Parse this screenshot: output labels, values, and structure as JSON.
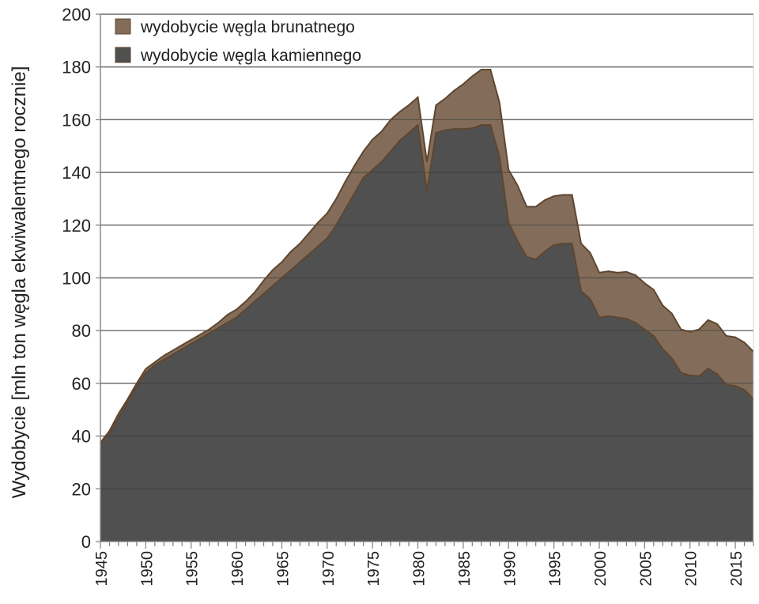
{
  "chart_data": {
    "type": "area",
    "stacked": true,
    "title": "",
    "xlabel": "",
    "ylabel": "Wydobycie [mln ton węgla ekwiwalentnego rocznie]",
    "xlim": [
      1945,
      2017
    ],
    "ylim": [
      0,
      200
    ],
    "y_ticks": [
      0,
      20,
      40,
      60,
      80,
      100,
      120,
      140,
      160,
      180,
      200
    ],
    "x_ticks": [
      1945,
      1950,
      1955,
      1960,
      1965,
      1970,
      1975,
      1980,
      1985,
      1990,
      1995,
      2000,
      2005,
      2010,
      2015
    ],
    "grid": "horizontal",
    "legend_position": "top-left",
    "x": [
      1945,
      1946,
      1947,
      1948,
      1949,
      1950,
      1951,
      1952,
      1953,
      1954,
      1955,
      1956,
      1957,
      1958,
      1959,
      1960,
      1961,
      1962,
      1963,
      1964,
      1965,
      1966,
      1967,
      1968,
      1969,
      1970,
      1971,
      1972,
      1973,
      1974,
      1975,
      1976,
      1977,
      1978,
      1979,
      1980,
      1981,
      1982,
      1983,
      1984,
      1985,
      1986,
      1987,
      1988,
      1989,
      1990,
      1991,
      1992,
      1993,
      1994,
      1995,
      1996,
      1997,
      1998,
      1999,
      2000,
      2001,
      2002,
      2003,
      2004,
      2005,
      2006,
      2007,
      2008,
      2009,
      2010,
      2011,
      2012,
      2013,
      2014,
      2015,
      2016,
      2017
    ],
    "series": [
      {
        "name": "wydobycie węgla kamiennego",
        "color": "#505050",
        "values": [
          37,
          41,
          47,
          53,
          59,
          64,
          67,
          69,
          71,
          73,
          75,
          77,
          79,
          81,
          83,
          85,
          88,
          91,
          94,
          97,
          100,
          103,
          106,
          109,
          112,
          115,
          120,
          126,
          132,
          138,
          141,
          144,
          148,
          152,
          155,
          158,
          133,
          155,
          156,
          156.5,
          156.5,
          156.7,
          158,
          158,
          146,
          121,
          114,
          108,
          107,
          110,
          112.5,
          113,
          113,
          95,
          92,
          85,
          85.5,
          85,
          84.5,
          83,
          80.5,
          78,
          73,
          69.5,
          64,
          63,
          62.7,
          65.6,
          63.5,
          59.5,
          59,
          57.5,
          54
        ]
      },
      {
        "name": "wydobycie węgla brunatnego",
        "color": "#836d5a",
        "values": [
          0.5,
          1,
          1.5,
          1,
          1,
          1.5,
          1,
          1.5,
          1.5,
          1.5,
          1.5,
          1.5,
          1.5,
          2,
          3,
          3,
          3,
          3.5,
          5,
          6,
          6,
          7,
          7,
          8,
          9,
          9.5,
          10,
          10.5,
          10.5,
          10,
          11.5,
          11.5,
          12,
          11,
          10.5,
          10.5,
          11,
          10.5,
          12,
          14.5,
          17,
          19.8,
          21,
          21,
          20.5,
          20,
          21,
          19,
          20,
          19.5,
          18.5,
          18.5,
          18.5,
          18,
          17.5,
          17,
          17,
          17,
          17.8,
          18,
          17.5,
          17.5,
          16.5,
          17,
          16.5,
          16.5,
          17.8,
          18.4,
          19,
          18.5,
          18.5,
          18,
          18
        ]
      }
    ],
    "legend_order": [
      1,
      0
    ],
    "stroke_color": "#5e4630"
  }
}
